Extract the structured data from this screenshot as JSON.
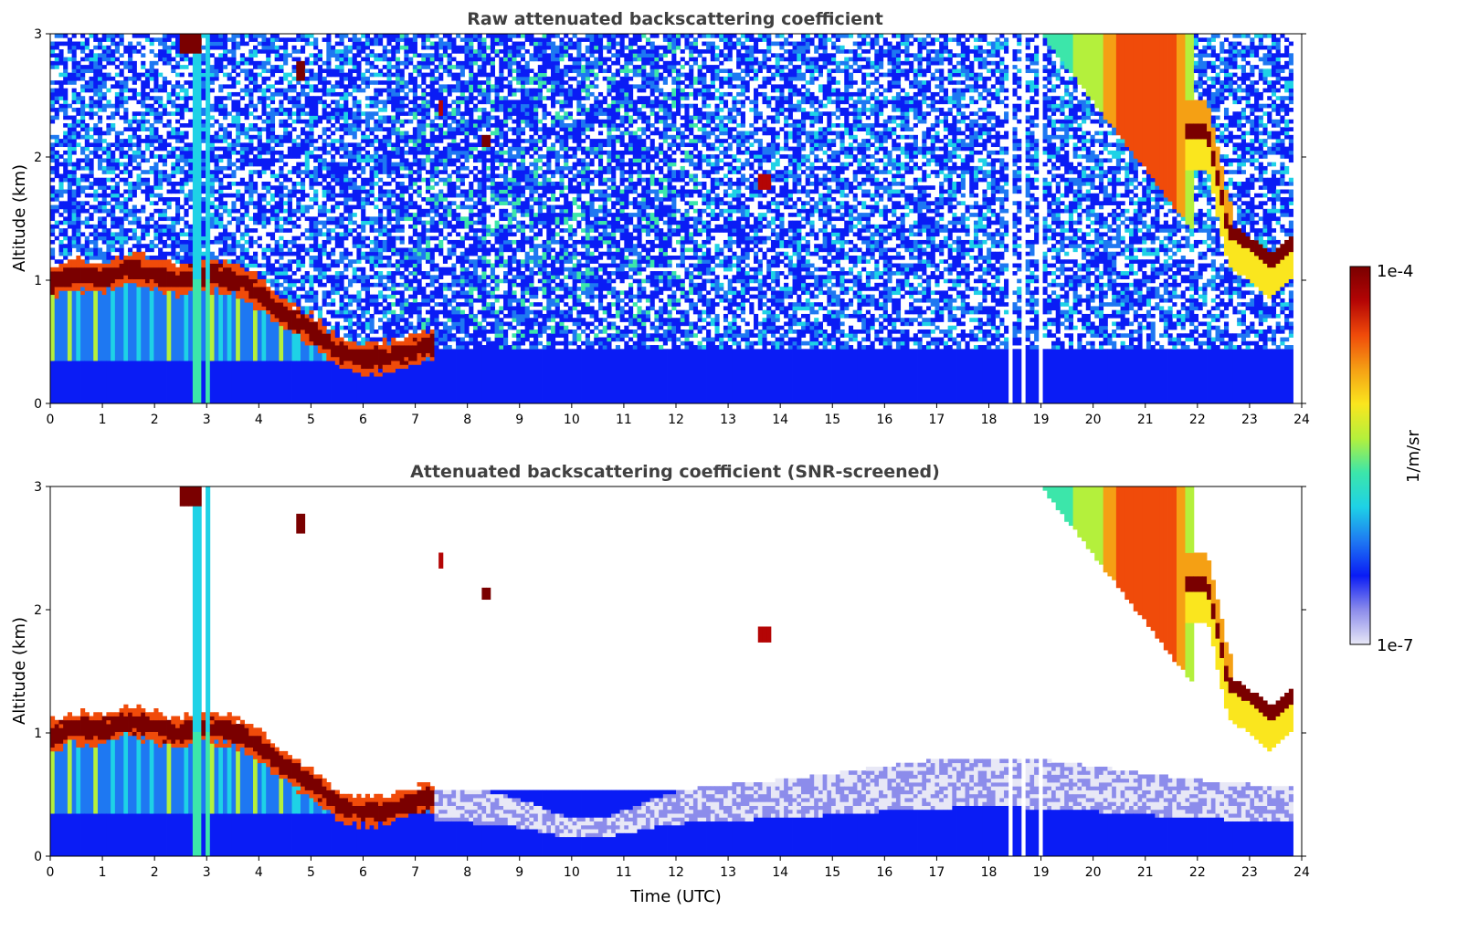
{
  "chart_data": [
    {
      "type": "heatmap",
      "title": "Raw attenuated backscattering coefficient",
      "ylabel": "Altitude (km)",
      "xlabel": "",
      "xlim": [
        0,
        24
      ],
      "ylim": [
        0,
        3
      ],
      "xticks": [
        "0",
        "1",
        "2",
        "3",
        "4",
        "5",
        "6",
        "7",
        "8",
        "9",
        "10",
        "11",
        "12",
        "13",
        "14",
        "15",
        "16",
        "17",
        "18",
        "19",
        "20",
        "21",
        "22",
        "23",
        "24"
      ],
      "yticks": [
        "0",
        "1",
        "2",
        "3"
      ],
      "features": [
        {
          "name": "boundary layer top",
          "x": [
            0,
            0.5,
            1,
            1.5,
            2,
            2.4,
            3,
            3.5,
            4,
            4.5,
            5,
            5.5,
            6,
            6.5,
            7,
            7.3
          ],
          "y": [
            0.98,
            1.05,
            1.02,
            1.1,
            1.05,
            1.0,
            1.05,
            1.02,
            0.9,
            0.72,
            0.6,
            0.42,
            0.36,
            0.38,
            0.44,
            0.47
          ]
        },
        {
          "name": "upper cloud layer",
          "x": [
            21.8,
            22.2,
            22.6,
            23.0,
            23.4,
            23.8
          ],
          "y": [
            2.2,
            2.2,
            1.4,
            1.3,
            1.15,
            1.3
          ]
        }
      ]
    },
    {
      "type": "heatmap",
      "title": "Attenuated backscattering coefficient (SNR-screened)",
      "ylabel": "Altitude (km)",
      "xlabel": "Time (UTC)",
      "xlim": [
        0,
        24
      ],
      "ylim": [
        0,
        3
      ],
      "xticks": [
        "0",
        "1",
        "2",
        "3",
        "4",
        "5",
        "6",
        "7",
        "8",
        "9",
        "10",
        "11",
        "12",
        "13",
        "14",
        "15",
        "16",
        "17",
        "18",
        "19",
        "20",
        "21",
        "22",
        "23",
        "24"
      ],
      "yticks": [
        "0",
        "1",
        "2",
        "3"
      ]
    }
  ],
  "colorbar": {
    "label": "1/m/sr",
    "max_label": "1e-4",
    "min_label": "1e-7",
    "colors": [
      "#e8e8f6",
      "#8c8ceb",
      "#0a1cf5",
      "#1e78f2",
      "#1ed2e6",
      "#3ce6aa",
      "#b4f03c",
      "#fae61e",
      "#f5a014",
      "#f04b0a",
      "#b40505",
      "#7a0000"
    ]
  }
}
